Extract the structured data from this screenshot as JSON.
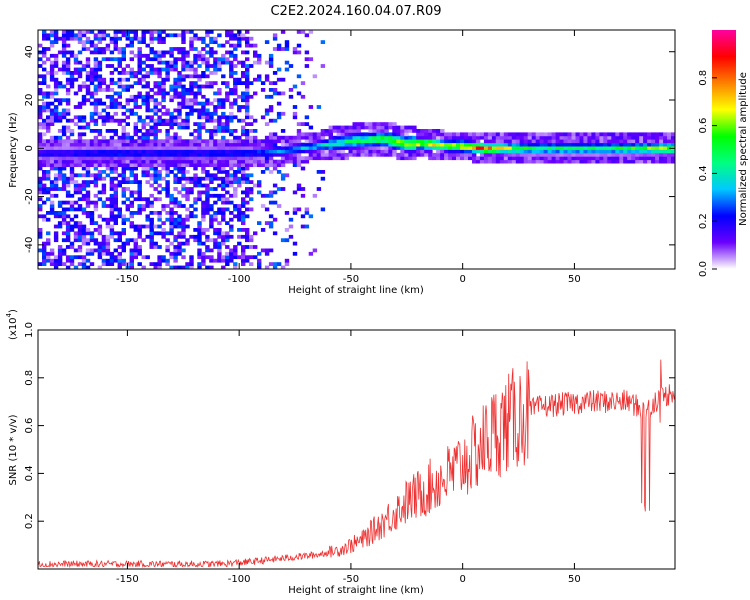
{
  "figure": {
    "title": "C2E2.2024.160.04.07.R09"
  },
  "chart_data": [
    {
      "type": "heatmap",
      "title": "C2E2.2024.160.04.07.R09",
      "xlabel": "Height of straight line (km)",
      "ylabel": "Frequency (Hz)",
      "xlim": [
        -190,
        95
      ],
      "ylim": [
        -50,
        49
      ],
      "xticks": [
        -150,
        -100,
        -50,
        0,
        50
      ],
      "xtick_labels": [
        "-150",
        "-100",
        "-50",
        "0",
        "50"
      ],
      "yticks": [
        -40,
        -20,
        0,
        20,
        40
      ],
      "ytick_labels": [
        "-40",
        "-20",
        "0",
        "20",
        "40"
      ],
      "colorbar": {
        "label": "Normalized spectral amplitude",
        "range": [
          0,
          1
        ],
        "ticks": [
          0.0,
          0.2,
          0.4,
          0.6,
          0.8
        ],
        "tick_labels": [
          "0.0",
          "0.2",
          "0.4",
          "0.6",
          "0.8"
        ],
        "colors": [
          "#ffffff",
          "#6a00ff",
          "#0000ff",
          "#00c8ff",
          "#00ff80",
          "#00ff00",
          "#ffff00",
          "#ff8000",
          "#ff0000",
          "#ff00a0"
        ]
      },
      "signal_band": {
        "description_values_x": [
          -190,
          -160,
          -120,
          -95,
          -80,
          -65,
          -50,
          -35,
          -25,
          -15,
          -5,
          0,
          10,
          30,
          60,
          95
        ],
        "center_frequency_hz": [
          -2,
          -2,
          -2,
          -2,
          -1,
          1,
          3,
          4,
          2,
          2,
          1,
          1,
          0,
          0,
          0,
          0
        ],
        "peak_amplitude": [
          0.25,
          0.3,
          0.3,
          0.3,
          0.35,
          0.45,
          0.55,
          0.65,
          0.8,
          0.85,
          0.8,
          0.9,
          0.95,
          0.6,
          0.55,
          0.75
        ]
      }
    },
    {
      "type": "line",
      "xlabel": "Height of straight line (km)",
      "ylabel": "SNR (10 * v/v)",
      "y_multiplier_label": "(x10",
      "y_multiplier_exponent": "4",
      "y_multiplier_close": ")",
      "xlim": [
        -190,
        95
      ],
      "ylim": [
        0,
        1.0
      ],
      "xticks": [
        -150,
        -100,
        -50,
        0,
        50
      ],
      "xtick_labels": [
        "-150",
        "-100",
        "-50",
        "0",
        "50"
      ],
      "yticks": [
        0.2,
        0.4,
        0.6,
        0.8,
        1.0
      ],
      "ytick_labels": [
        "0.2",
        "0.4",
        "0.6",
        "0.8",
        "1.0"
      ],
      "series": [
        {
          "name": "SNR",
          "color": "#ee3030",
          "x": [
            -190,
            -150,
            -110,
            -95,
            -85,
            -75,
            -65,
            -55,
            -45,
            -35,
            -25,
            -15,
            -5,
            5,
            15,
            25,
            35,
            45,
            55,
            65,
            75,
            82,
            85,
            90,
            95
          ],
          "y": [
            0.02,
            0.02,
            0.02,
            0.03,
            0.04,
            0.05,
            0.06,
            0.08,
            0.12,
            0.2,
            0.28,
            0.34,
            0.4,
            0.48,
            0.58,
            0.64,
            0.68,
            0.69,
            0.7,
            0.7,
            0.7,
            0.65,
            0.7,
            0.72,
            0.75
          ]
        }
      ]
    }
  ]
}
